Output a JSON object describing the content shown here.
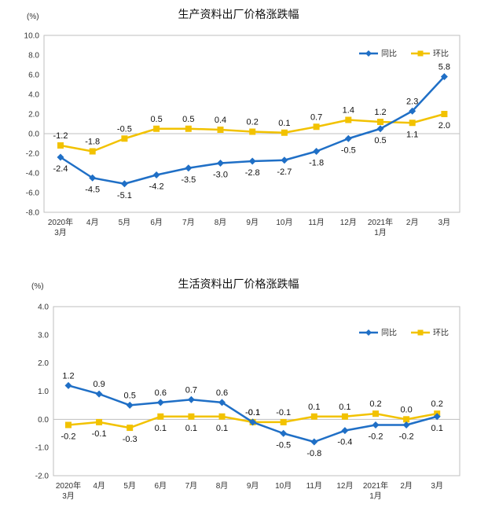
{
  "chart_data": [
    {
      "type": "line",
      "title": "生产资料出厂价格涨跌幅",
      "unit": "(%)",
      "categories": [
        "2020年\n3月",
        "4月",
        "5月",
        "6月",
        "7月",
        "8月",
        "9月",
        "10月",
        "11月",
        "12月",
        "2021年\n1月",
        "2月",
        "3月"
      ],
      "ylim": [
        -8,
        10
      ],
      "yticks": [
        "10.0",
        "8.0",
        "6.0",
        "4.0",
        "2.0",
        "0.0",
        "-2.0",
        "-4.0",
        "-6.0",
        "-8.0"
      ],
      "series": [
        {
          "name": "同比",
          "color": "#1f6fc6",
          "marker": "diamond",
          "values": [
            -2.4,
            -4.5,
            -5.1,
            -4.2,
            -3.5,
            -3.0,
            -2.8,
            -2.7,
            -1.8,
            -0.5,
            0.5,
            2.3,
            5.8
          ],
          "labels": [
            "-2.4",
            "-4.5",
            "-5.1",
            "-4.2",
            "-3.5",
            "-3.0",
            "-2.8",
            "-2.7",
            "-1.8",
            "-0.5",
            "0.5",
            "2.3",
            "5.8"
          ]
        },
        {
          "name": "环比",
          "color": "#f2c200",
          "marker": "square",
          "values": [
            -1.2,
            -1.8,
            -0.5,
            0.5,
            0.5,
            0.4,
            0.2,
            0.1,
            0.7,
            1.4,
            1.2,
            1.1,
            2.0
          ],
          "labels": [
            "-1.2",
            "-1.8",
            "-0.5",
            "0.5",
            "0.5",
            "0.4",
            "0.2",
            "0.1",
            "0.7",
            "1.4",
            "1.2",
            "1.1",
            "2.0"
          ]
        }
      ],
      "legend": "top-right",
      "grid": false
    },
    {
      "type": "line",
      "title": "生活资料出厂价格涨跌幅",
      "unit": "(%)",
      "categories": [
        "2020年\n3月",
        "4月",
        "5月",
        "6月",
        "7月",
        "8月",
        "9月",
        "10月",
        "11月",
        "12月",
        "2021年\n1月",
        "2月",
        "3月"
      ],
      "ylim": [
        -2,
        4
      ],
      "yticks": [
        "4.0",
        "3.0",
        "2.0",
        "1.0",
        "0.0",
        "-1.0",
        "-2.0"
      ],
      "series": [
        {
          "name": "同比",
          "color": "#1f6fc6",
          "marker": "diamond",
          "values": [
            1.2,
            0.9,
            0.5,
            0.6,
            0.7,
            0.6,
            -0.1,
            -0.5,
            -0.8,
            -0.4,
            -0.2,
            -0.2,
            0.1
          ],
          "labels": [
            "1.2",
            "0.9",
            "0.5",
            "0.6",
            "0.7",
            "0.6",
            "-0.1",
            "-0.5",
            "-0.8",
            "-0.4",
            "-0.2",
            "-0.2",
            "0.1"
          ]
        },
        {
          "name": "环比",
          "color": "#f2c200",
          "marker": "square",
          "values": [
            -0.2,
            -0.1,
            -0.3,
            0.1,
            0.1,
            0.1,
            -0.1,
            -0.1,
            0.1,
            0.1,
            0.2,
            0.0,
            0.2
          ],
          "labels": [
            "-0.2",
            "-0.1",
            "-0.3",
            "0.1",
            "0.1",
            "0.1",
            "-0.1",
            "-0.1",
            "0.1",
            "0.1",
            "0.2",
            "0.0",
            "0.2"
          ]
        }
      ],
      "legend": "top-right",
      "grid": false
    }
  ]
}
